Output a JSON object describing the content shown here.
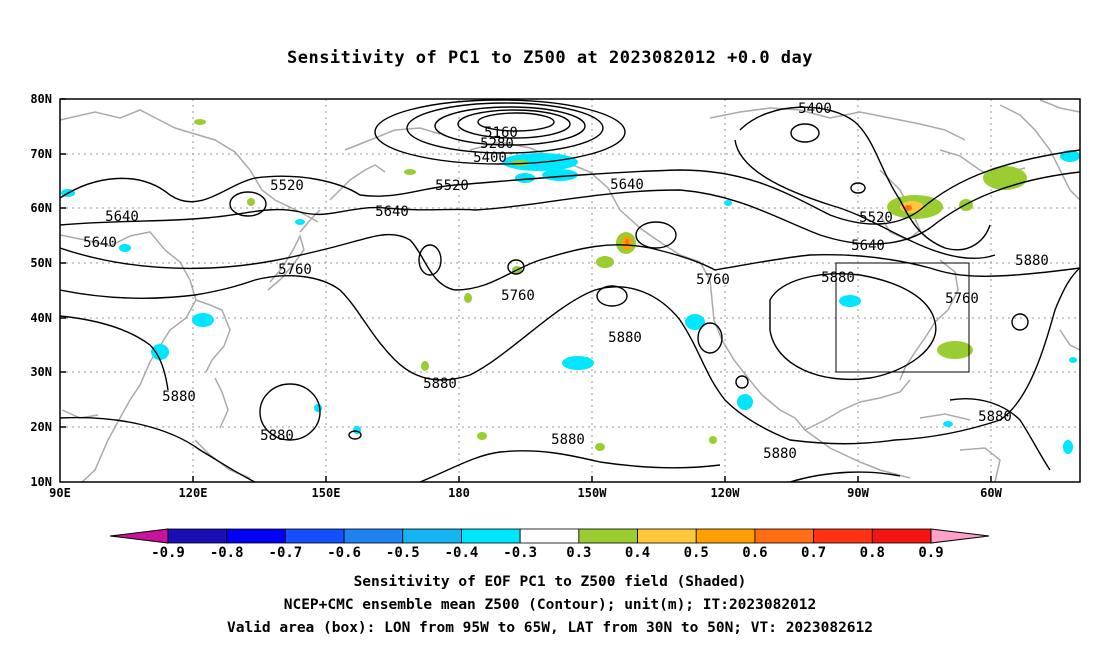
{
  "title": "Sensitivity of PC1 to Z500 at 2023082012 +0.0 day",
  "map": {
    "lat_labels": [
      "80N",
      "70N",
      "60N",
      "50N",
      "40N",
      "30N",
      "20N",
      "10N"
    ],
    "lon_labels": [
      "90E",
      "120E",
      "150E",
      "180",
      "150W",
      "120W",
      "90W",
      "60W"
    ],
    "contour_color": "#000000",
    "coast_color": "#aaaaaa",
    "grid_style": "dotted",
    "contour_labels": [
      {
        "text": "5160"
      },
      {
        "text": "5280"
      },
      {
        "text": "5400"
      },
      {
        "text": "5400"
      },
      {
        "text": "5520"
      },
      {
        "text": "5520"
      },
      {
        "text": "5520"
      },
      {
        "text": "5640"
      },
      {
        "text": "5640"
      },
      {
        "text": "5640"
      },
      {
        "text": "5640"
      },
      {
        "text": "5640"
      },
      {
        "text": "5760"
      },
      {
        "text": "5760"
      },
      {
        "text": "5760"
      },
      {
        "text": "5760"
      },
      {
        "text": "5880"
      },
      {
        "text": "5880"
      },
      {
        "text": "5880"
      },
      {
        "text": "5880"
      },
      {
        "text": "5880"
      },
      {
        "text": "5880"
      },
      {
        "text": "5880"
      },
      {
        "text": "5880"
      },
      {
        "text": "5880"
      }
    ],
    "valid_box": {
      "lon_west": "95W",
      "lon_east": "65W",
      "lat_south": "30N",
      "lat_north": "50N"
    }
  },
  "colorbar": {
    "ticks": [
      "-0.9",
      "-0.8",
      "-0.7",
      "-0.6",
      "-0.5",
      "-0.4",
      "-0.3",
      "0.3",
      "0.4",
      "0.5",
      "0.6",
      "0.7",
      "0.8",
      "0.9"
    ],
    "colors": [
      "#1a0fb4",
      "#0000f5",
      "#1450ff",
      "#1e82f0",
      "#14b4f0",
      "#00e6ff",
      "#ffffff",
      "#9acd32",
      "#ffc83c",
      "#ffa000",
      "#ff6e14",
      "#ff3214",
      "#f51414"
    ],
    "low_end_color": "#c8149b",
    "high_end_color": "#ffa0c8"
  },
  "captions": [
    "Sensitivity of EOF PC1 to Z500 field (Shaded)",
    "NCEP+CMC ensemble mean Z500 (Contour); unit(m); IT:2023082012",
    "Valid area (box): LON from 95W to 65W, LAT from 30N to 50N; VT: 2023082612"
  ]
}
